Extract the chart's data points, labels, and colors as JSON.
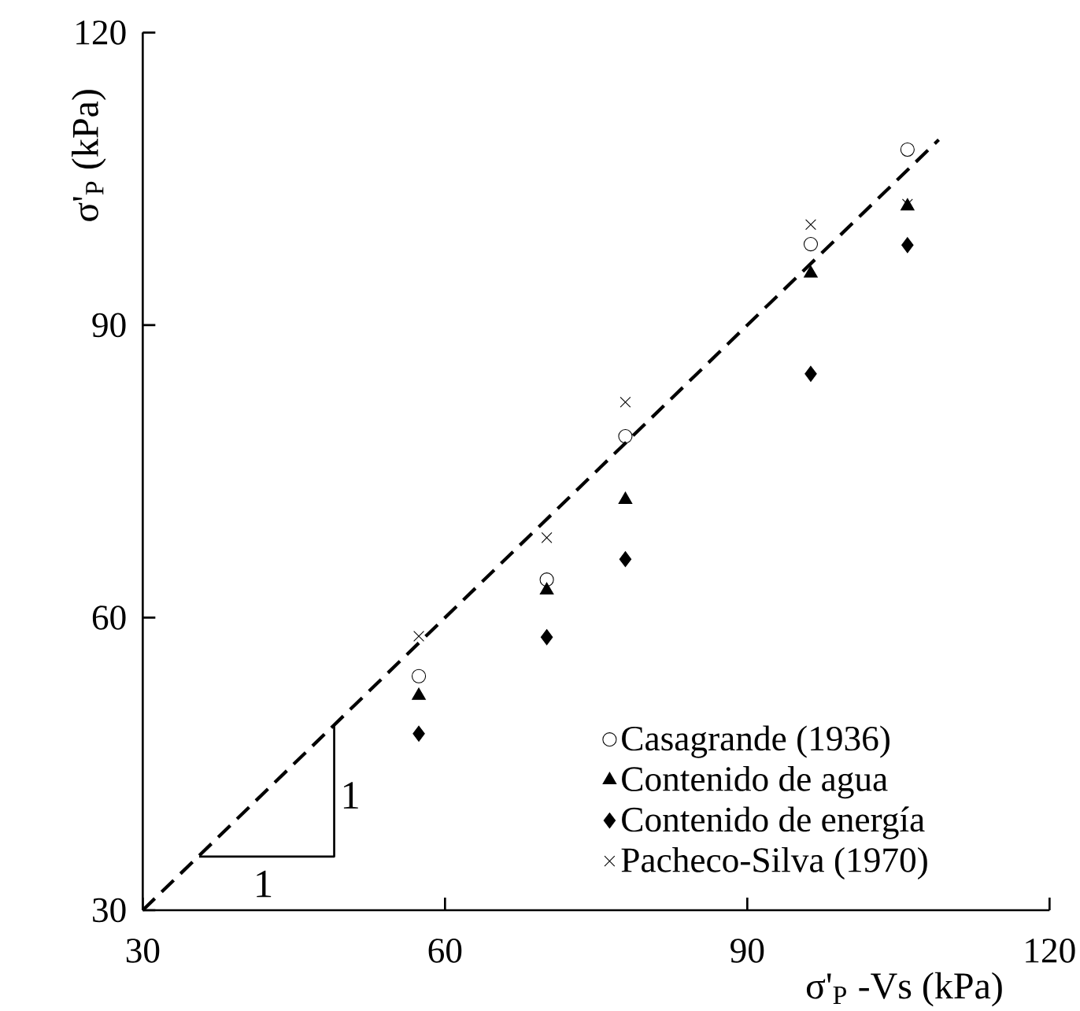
{
  "chart_data": {
    "type": "scatter",
    "xlabel": "σ'$_{P}$ -Vs (kPa)",
    "ylabel": "σ'$_{P}$ (kPa)",
    "xlim": [
      30,
      120
    ],
    "ylim": [
      30,
      120
    ],
    "xticks": [
      30,
      60,
      90,
      120
    ],
    "yticks": [
      30,
      60,
      90,
      120
    ],
    "grid": false,
    "legend": "bottom right",
    "x": [
      57.4,
      70.1,
      77.9,
      96.3,
      105.9
    ],
    "series": [
      {
        "name": "Casagrande (1936)",
        "color": "#000000",
        "marker": "circle",
        "values": [
          54.0,
          63.9,
          78.6,
          98.3,
          108.0
        ]
      },
      {
        "name": "Contenido de agua",
        "color": "#000000",
        "marker": "triangle",
        "values": [
          52.0,
          62.8,
          72.1,
          95.3,
          102.2
        ]
      },
      {
        "name": "Contenido de energía",
        "color": "#000000",
        "marker": "diamond",
        "values": [
          48.1,
          58.0,
          66.0,
          85.0,
          98.2
        ]
      },
      {
        "name": "Pacheco-Silva (1970)",
        "color": "#000000",
        "marker": "cross",
        "values": [
          58.1,
          68.2,
          82.1,
          100.3,
          102.4
        ]
      },
      {
        "type": "line",
        "color": "#000000",
        "line_style": "dashed",
        "marker": "none",
        "x": [
          30,
          109
        ],
        "values": [
          30,
          109
        ]
      },
      {
        "type": "line",
        "color": "#000000",
        "line_style": "solid",
        "marker": "none",
        "x": [
          35.6,
          49,
          49
        ],
        "values": [
          35.5,
          35.5,
          49
        ]
      }
    ],
    "annotations": [
      "1",
      "1"
    ]
  }
}
